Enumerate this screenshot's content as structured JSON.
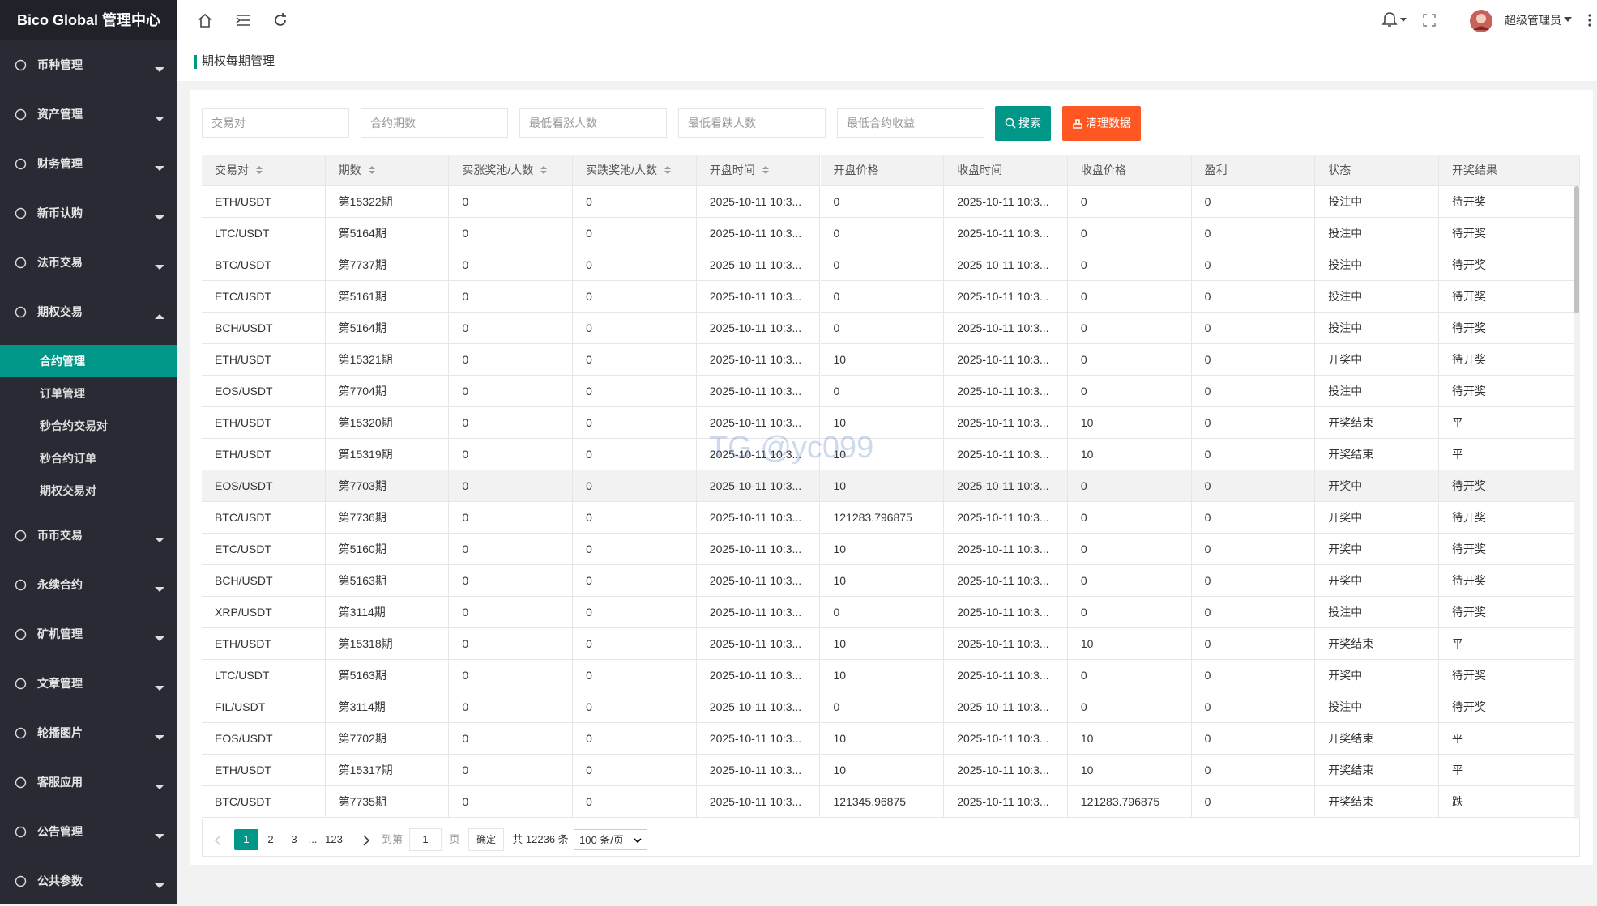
{
  "sidebar": {
    "title": "Bico Global 管理中心",
    "menu": [
      {
        "label": "币种管理"
      },
      {
        "label": "资产管理"
      },
      {
        "label": "财务管理"
      },
      {
        "label": "新币认购"
      },
      {
        "label": "法币交易"
      },
      {
        "label": "期权交易",
        "children": [
          "合约管理",
          "订单管理",
          "秒合约交易对",
          "秒合约订单",
          "期权交易对"
        ],
        "active_child": 0
      },
      {
        "label": "币币交易"
      },
      {
        "label": "永续合约"
      },
      {
        "label": "矿机管理"
      },
      {
        "label": "文章管理"
      },
      {
        "label": "轮播图片"
      },
      {
        "label": "客服应用"
      },
      {
        "label": "公告管理"
      },
      {
        "label": "公共参数"
      }
    ]
  },
  "header": {
    "user": "超级管理员"
  },
  "breadcrumb": "期权每期管理",
  "search": {
    "placeholders": [
      "交易对",
      "合约期数",
      "最低看涨人数",
      "最低看跌人数",
      "最低合约收益"
    ],
    "search_button": "搜索",
    "clear_button": "清理数据"
  },
  "table": {
    "columns": [
      {
        "label": "交易对",
        "sortable": true
      },
      {
        "label": "期数",
        "sortable": true
      },
      {
        "label": "买涨奖池/人数",
        "sortable": true
      },
      {
        "label": "买跌奖池/人数",
        "sortable": true
      },
      {
        "label": "开盘时间",
        "sortable": true
      },
      {
        "label": "开盘价格",
        "sortable": false
      },
      {
        "label": "收盘时间",
        "sortable": false
      },
      {
        "label": "收盘价格",
        "sortable": false
      },
      {
        "label": "盈利",
        "sortable": false
      },
      {
        "label": "状态",
        "sortable": false
      },
      {
        "label": "开奖结果",
        "sortable": false
      }
    ],
    "highlighted_row": 9,
    "rows": [
      [
        "ETH/USDT",
        "第15322期",
        "0",
        "0",
        "2025-10-11 10:3...",
        "0",
        "2025-10-11 10:3...",
        "0",
        "0",
        "投注中",
        "待开奖"
      ],
      [
        "LTC/USDT",
        "第5164期",
        "0",
        "0",
        "2025-10-11 10:3...",
        "0",
        "2025-10-11 10:3...",
        "0",
        "0",
        "投注中",
        "待开奖"
      ],
      [
        "BTC/USDT",
        "第7737期",
        "0",
        "0",
        "2025-10-11 10:3...",
        "0",
        "2025-10-11 10:3...",
        "0",
        "0",
        "投注中",
        "待开奖"
      ],
      [
        "ETC/USDT",
        "第5161期",
        "0",
        "0",
        "2025-10-11 10:3...",
        "0",
        "2025-10-11 10:3...",
        "0",
        "0",
        "投注中",
        "待开奖"
      ],
      [
        "BCH/USDT",
        "第5164期",
        "0",
        "0",
        "2025-10-11 10:3...",
        "0",
        "2025-10-11 10:3...",
        "0",
        "0",
        "投注中",
        "待开奖"
      ],
      [
        "ETH/USDT",
        "第15321期",
        "0",
        "0",
        "2025-10-11 10:3...",
        "10",
        "2025-10-11 10:3...",
        "0",
        "0",
        "开奖中",
        "待开奖"
      ],
      [
        "EOS/USDT",
        "第7704期",
        "0",
        "0",
        "2025-10-11 10:3...",
        "0",
        "2025-10-11 10:3...",
        "0",
        "0",
        "投注中",
        "待开奖"
      ],
      [
        "ETH/USDT",
        "第15320期",
        "0",
        "0",
        "2025-10-11 10:3...",
        "10",
        "2025-10-11 10:3...",
        "10",
        "0",
        "开奖结束",
        "平"
      ],
      [
        "ETH/USDT",
        "第15319期",
        "0",
        "0",
        "2025-10-11 10:3...",
        "10",
        "2025-10-11 10:3...",
        "10",
        "0",
        "开奖结束",
        "平"
      ],
      [
        "EOS/USDT",
        "第7703期",
        "0",
        "0",
        "2025-10-11 10:3...",
        "10",
        "2025-10-11 10:3...",
        "0",
        "0",
        "开奖中",
        "待开奖"
      ],
      [
        "BTC/USDT",
        "第7736期",
        "0",
        "0",
        "2025-10-11 10:3...",
        "121283.796875",
        "2025-10-11 10:3...",
        "0",
        "0",
        "开奖中",
        "待开奖"
      ],
      [
        "ETC/USDT",
        "第5160期",
        "0",
        "0",
        "2025-10-11 10:3...",
        "10",
        "2025-10-11 10:3...",
        "0",
        "0",
        "开奖中",
        "待开奖"
      ],
      [
        "BCH/USDT",
        "第5163期",
        "0",
        "0",
        "2025-10-11 10:3...",
        "10",
        "2025-10-11 10:3...",
        "0",
        "0",
        "开奖中",
        "待开奖"
      ],
      [
        "XRP/USDT",
        "第3114期",
        "0",
        "0",
        "2025-10-11 10:3...",
        "0",
        "2025-10-11 10:3...",
        "0",
        "0",
        "投注中",
        "待开奖"
      ],
      [
        "ETH/USDT",
        "第15318期",
        "0",
        "0",
        "2025-10-11 10:3...",
        "10",
        "2025-10-11 10:3...",
        "10",
        "0",
        "开奖结束",
        "平"
      ],
      [
        "LTC/USDT",
        "第5163期",
        "0",
        "0",
        "2025-10-11 10:3...",
        "10",
        "2025-10-11 10:3...",
        "0",
        "0",
        "开奖中",
        "待开奖"
      ],
      [
        "FIL/USDT",
        "第3114期",
        "0",
        "0",
        "2025-10-11 10:3...",
        "0",
        "2025-10-11 10:3...",
        "0",
        "0",
        "投注中",
        "待开奖"
      ],
      [
        "EOS/USDT",
        "第7702期",
        "0",
        "0",
        "2025-10-11 10:3...",
        "10",
        "2025-10-11 10:3...",
        "10",
        "0",
        "开奖结束",
        "平"
      ],
      [
        "ETH/USDT",
        "第15317期",
        "0",
        "0",
        "2025-10-11 10:3...",
        "10",
        "2025-10-11 10:3...",
        "10",
        "0",
        "开奖结束",
        "平"
      ],
      [
        "BTC/USDT",
        "第7735期",
        "0",
        "0",
        "2025-10-11 10:3...",
        "121345.96875",
        "2025-10-11 10:3...",
        "121283.796875",
        "0",
        "开奖结束",
        "跌"
      ]
    ]
  },
  "pagination": {
    "pages": [
      "1",
      "2",
      "3",
      "...",
      "123"
    ],
    "current": 0,
    "goto_label": "到第",
    "goto_value": "1",
    "page_unit": "页",
    "confirm": "确定",
    "total": "共 12236 条",
    "page_size": "100 条/页"
  },
  "watermark": "TG @yc099"
}
